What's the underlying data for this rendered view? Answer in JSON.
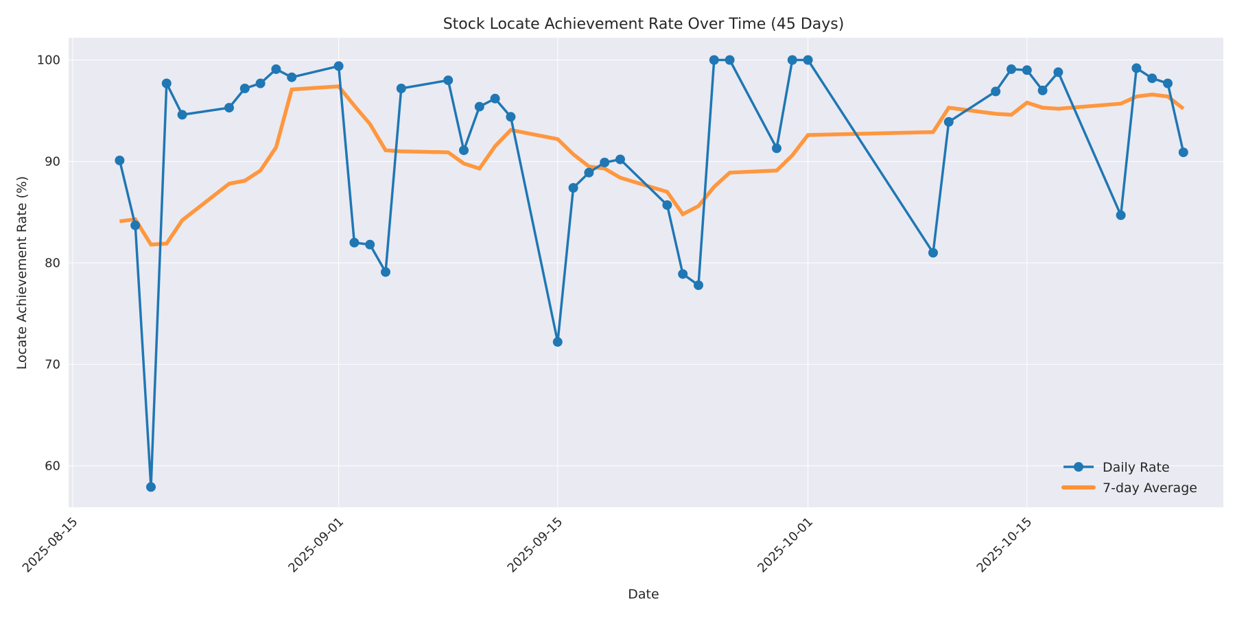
{
  "chart_data": {
    "type": "line",
    "title": "Stock Locate Achievement Rate Over Time (45 Days)",
    "xlabel": "Date",
    "ylabel": "Locate Achievement Rate (%)",
    "ylim": [
      55.9,
      102.2
    ],
    "yticks": [
      60,
      70,
      80,
      90,
      100
    ],
    "xticks": [
      "2025-08-15",
      "2025-09-01",
      "2025-09-15",
      "2025-10-01",
      "2025-10-15"
    ],
    "grid": true,
    "legend_position": "lower right",
    "x": [
      "2025-08-18",
      "2025-08-19",
      "2025-08-20",
      "2025-08-21",
      "2025-08-22",
      "2025-08-25",
      "2025-08-26",
      "2025-08-27",
      "2025-08-28",
      "2025-08-29",
      "2025-09-01",
      "2025-09-02",
      "2025-09-03",
      "2025-09-04",
      "2025-09-05",
      "2025-09-08",
      "2025-09-09",
      "2025-09-10",
      "2025-09-11",
      "2025-09-12",
      "2025-09-15",
      "2025-09-16",
      "2025-09-17",
      "2025-09-18",
      "2025-09-19",
      "2025-09-22",
      "2025-09-23",
      "2025-09-24",
      "2025-09-25",
      "2025-09-26",
      "2025-09-29",
      "2025-09-30",
      "2025-10-01",
      "2025-10-09",
      "2025-10-10",
      "2025-10-13",
      "2025-10-14",
      "2025-10-15",
      "2025-10-16",
      "2025-10-17",
      "2025-10-21",
      "2025-10-22",
      "2025-10-23",
      "2025-10-24",
      "2025-10-25"
    ],
    "series": [
      {
        "name": "Daily Rate",
        "color": "#1f77b4",
        "marker": "circle",
        "values": [
          90.1,
          83.7,
          57.9,
          97.7,
          94.6,
          95.3,
          97.2,
          97.7,
          99.1,
          98.3,
          99.4,
          82.0,
          81.8,
          79.1,
          97.2,
          98.0,
          91.1,
          95.4,
          96.2,
          94.4,
          72.2,
          87.4,
          88.9,
          89.9,
          90.2,
          85.7,
          78.9,
          77.8,
          100.0,
          100.0,
          91.3,
          100.0,
          100.0,
          81.0,
          93.9,
          96.9,
          99.1,
          99.0,
          97.0,
          98.8,
          84.7,
          99.2,
          98.2,
          97.7,
          90.9
        ]
      },
      {
        "name": "7-day Average",
        "color": "#ff7f0e",
        "marker": "none",
        "values": [
          84.1,
          84.3,
          81.8,
          81.9,
          84.2,
          87.8,
          88.1,
          89.1,
          91.4,
          97.1,
          97.4,
          95.5,
          93.7,
          91.1,
          91.0,
          90.9,
          89.8,
          89.3,
          91.5,
          93.1,
          92.2,
          90.7,
          89.5,
          89.3,
          88.4,
          87.0,
          84.8,
          85.6,
          87.5,
          88.9,
          89.1,
          90.6,
          92.6,
          92.9,
          95.3,
          94.7,
          94.6,
          95.8,
          95.3,
          95.2,
          95.7,
          96.4,
          96.6,
          96.4,
          95.2
        ]
      }
    ]
  },
  "legend": {
    "items": [
      {
        "label": "Daily Rate"
      },
      {
        "label": "7-day Average"
      }
    ]
  }
}
